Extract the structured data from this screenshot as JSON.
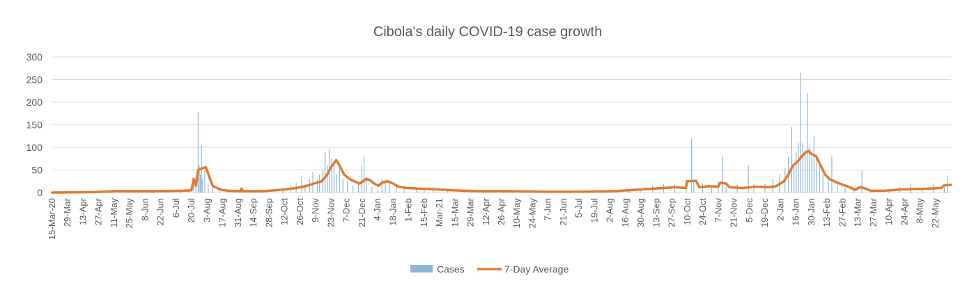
{
  "chart_data": {
    "type": "bar",
    "title": "Cibola's daily COVID-19 case growth",
    "xlabel": "",
    "ylabel": "",
    "ylim": [
      0,
      300
    ],
    "yticks": [
      0,
      50,
      100,
      150,
      200,
      250,
      300
    ],
    "grid": true,
    "legend_position": "bottom",
    "x_range": [
      "2020-03-15",
      "2022-05-31"
    ],
    "xtick_labels": [
      "15-Mar-20",
      "29-Mar",
      "13-Apr",
      "27-Apr",
      "11-May",
      "25-May",
      "8-Jun",
      "22-Jun",
      "6-Jul",
      "20-Jul",
      "3-Aug",
      "17-Aug",
      "31-Aug",
      "14-Sep",
      "28-Sep",
      "12-Oct",
      "26-Oct",
      "9-Nov",
      "23-Nov",
      "7-Dec",
      "21-Dec",
      "4-Jan",
      "18-Jan",
      "1-Feb",
      "15-Feb",
      "Mar-21",
      "15-Mar",
      "29-Mar",
      "12-Apr",
      "26-Apr",
      "10-May",
      "24-May",
      "7-Jun",
      "21-Jun",
      "5-Jul",
      "19-Jul",
      "2-Aug",
      "16-Aug",
      "30-Aug",
      "13-Sep",
      "27-Sep",
      "10-Oct",
      "24-Oct",
      "7-Nov",
      "21-Nov",
      "5-Dec",
      "19-Dec",
      "2-Jan",
      "16-Jan",
      "30-Jan",
      "13-Feb",
      "27-Feb",
      "13-Mar",
      "27-Mar",
      "10-Apr",
      "24-Apr",
      "8-May",
      "22-May"
    ],
    "series": [
      {
        "name": "Cases",
        "kind": "bar",
        "color": "#8fb6d9",
        "points": [
          [
            "2020-04-01",
            1
          ],
          [
            "2020-04-15",
            2
          ],
          [
            "2020-04-28",
            6
          ],
          [
            "2020-05-05",
            4
          ],
          [
            "2020-05-15",
            6
          ],
          [
            "2020-05-28",
            5
          ],
          [
            "2020-06-10",
            5
          ],
          [
            "2020-06-25",
            4
          ],
          [
            "2020-07-08",
            7
          ],
          [
            "2020-07-15",
            6
          ],
          [
            "2020-07-20",
            18
          ],
          [
            "2020-07-22",
            35
          ],
          [
            "2020-07-24",
            178
          ],
          [
            "2020-07-25",
            60
          ],
          [
            "2020-07-26",
            40
          ],
          [
            "2020-07-27",
            105
          ],
          [
            "2020-07-28",
            30
          ],
          [
            "2020-07-30",
            50
          ],
          [
            "2020-08-02",
            20
          ],
          [
            "2020-08-06",
            12
          ],
          [
            "2020-08-12",
            6
          ],
          [
            "2020-08-20",
            3
          ],
          [
            "2020-09-01",
            11
          ],
          [
            "2020-09-10",
            4
          ],
          [
            "2020-09-20",
            5
          ],
          [
            "2020-10-01",
            8
          ],
          [
            "2020-10-08",
            10
          ],
          [
            "2020-10-15",
            15
          ],
          [
            "2020-10-20",
            22
          ],
          [
            "2020-10-25",
            38
          ],
          [
            "2020-10-28",
            15
          ],
          [
            "2020-11-01",
            30
          ],
          [
            "2020-11-04",
            45
          ],
          [
            "2020-11-08",
            30
          ],
          [
            "2020-11-10",
            40
          ],
          [
            "2020-11-13",
            50
          ],
          [
            "2020-11-15",
            90
          ],
          [
            "2020-11-17",
            60
          ],
          [
            "2020-11-19",
            95
          ],
          [
            "2020-11-21",
            75
          ],
          [
            "2020-11-23",
            65
          ],
          [
            "2020-11-25",
            40
          ],
          [
            "2020-11-28",
            55
          ],
          [
            "2020-12-01",
            30
          ],
          [
            "2020-12-05",
            25
          ],
          [
            "2020-12-10",
            15
          ],
          [
            "2020-12-15",
            22
          ],
          [
            "2020-12-18",
            60
          ],
          [
            "2020-12-20",
            80
          ],
          [
            "2020-12-22",
            35
          ],
          [
            "2020-12-27",
            12
          ],
          [
            "2021-01-01",
            5
          ],
          [
            "2021-01-05",
            30
          ],
          [
            "2021-01-08",
            28
          ],
          [
            "2021-01-12",
            20
          ],
          [
            "2021-01-18",
            12
          ],
          [
            "2021-01-25",
            10
          ],
          [
            "2021-02-05",
            8
          ],
          [
            "2021-02-12",
            10
          ],
          [
            "2021-02-20",
            12
          ],
          [
            "2021-03-05",
            5
          ],
          [
            "2021-03-20",
            4
          ],
          [
            "2021-04-10",
            4
          ],
          [
            "2021-05-01",
            3
          ],
          [
            "2021-05-20",
            3
          ],
          [
            "2021-06-15",
            2
          ],
          [
            "2021-07-10",
            3
          ],
          [
            "2021-08-01",
            4
          ],
          [
            "2021-08-15",
            6
          ],
          [
            "2021-08-25",
            8
          ],
          [
            "2021-09-05",
            15
          ],
          [
            "2021-09-15",
            20
          ],
          [
            "2021-09-25",
            18
          ],
          [
            "2021-10-05",
            15
          ],
          [
            "2021-10-10",
            120
          ],
          [
            "2021-10-12",
            25
          ],
          [
            "2021-10-20",
            20
          ],
          [
            "2021-10-28",
            15
          ],
          [
            "2021-11-03",
            25
          ],
          [
            "2021-11-07",
            80
          ],
          [
            "2021-11-10",
            12
          ],
          [
            "2021-11-20",
            18
          ],
          [
            "2021-11-30",
            60
          ],
          [
            "2021-12-05",
            20
          ],
          [
            "2021-12-15",
            20
          ],
          [
            "2021-12-22",
            30
          ],
          [
            "2021-12-28",
            40
          ],
          [
            "2022-01-02",
            55
          ],
          [
            "2022-01-05",
            80
          ],
          [
            "2022-01-08",
            145
          ],
          [
            "2022-01-10",
            60
          ],
          [
            "2022-01-12",
            90
          ],
          [
            "2022-01-14",
            110
          ],
          [
            "2022-01-16",
            265
          ],
          [
            "2022-01-18",
            110
          ],
          [
            "2022-01-20",
            95
          ],
          [
            "2022-01-22",
            220
          ],
          [
            "2022-01-24",
            100
          ],
          [
            "2022-01-26",
            80
          ],
          [
            "2022-01-28",
            125
          ],
          [
            "2022-01-30",
            85
          ],
          [
            "2022-02-02",
            60
          ],
          [
            "2022-02-05",
            40
          ],
          [
            "2022-02-10",
            30
          ],
          [
            "2022-02-13",
            80
          ],
          [
            "2022-02-18",
            20
          ],
          [
            "2022-02-25",
            10
          ],
          [
            "2022-03-05",
            8
          ],
          [
            "2022-03-12",
            48
          ],
          [
            "2022-03-20",
            4
          ],
          [
            "2022-04-05",
            6
          ],
          [
            "2022-04-15",
            12
          ],
          [
            "2022-04-25",
            20
          ],
          [
            "2022-05-05",
            10
          ],
          [
            "2022-05-15",
            20
          ],
          [
            "2022-05-25",
            15
          ],
          [
            "2022-05-28",
            38
          ]
        ]
      },
      {
        "name": "7-Day Average",
        "kind": "line",
        "color": "#e07b2f",
        "points": [
          [
            "2020-03-15",
            0
          ],
          [
            "2020-04-20",
            1
          ],
          [
            "2020-05-10",
            3
          ],
          [
            "2020-06-15",
            3
          ],
          [
            "2020-07-10",
            4
          ],
          [
            "2020-07-18",
            5
          ],
          [
            "2020-07-20",
            30
          ],
          [
            "2020-07-22",
            15
          ],
          [
            "2020-07-24",
            50
          ],
          [
            "2020-07-28",
            54
          ],
          [
            "2020-07-31",
            56
          ],
          [
            "2020-08-03",
            35
          ],
          [
            "2020-08-06",
            15
          ],
          [
            "2020-08-10",
            10
          ],
          [
            "2020-08-14",
            6
          ],
          [
            "2020-08-20",
            4
          ],
          [
            "2020-08-31",
            3
          ],
          [
            "2020-09-01",
            9
          ],
          [
            "2020-09-02",
            3
          ],
          [
            "2020-09-20",
            3
          ],
          [
            "2020-10-01",
            5
          ],
          [
            "2020-10-10",
            7
          ],
          [
            "2020-10-20",
            10
          ],
          [
            "2020-10-28",
            14
          ],
          [
            "2020-11-05",
            20
          ],
          [
            "2020-11-12",
            25
          ],
          [
            "2020-11-17",
            40
          ],
          [
            "2020-11-20",
            55
          ],
          [
            "2020-11-23",
            65
          ],
          [
            "2020-11-25",
            72
          ],
          [
            "2020-11-28",
            60
          ],
          [
            "2020-12-02",
            40
          ],
          [
            "2020-12-07",
            30
          ],
          [
            "2020-12-12",
            24
          ],
          [
            "2020-12-16",
            20
          ],
          [
            "2020-12-19",
            25
          ],
          [
            "2020-12-22",
            30
          ],
          [
            "2020-12-25",
            28
          ],
          [
            "2020-12-29",
            20
          ],
          [
            "2021-01-02",
            15
          ],
          [
            "2021-01-05",
            22
          ],
          [
            "2021-01-10",
            25
          ],
          [
            "2021-01-15",
            20
          ],
          [
            "2021-01-20",
            13
          ],
          [
            "2021-01-28",
            10
          ],
          [
            "2021-02-05",
            9
          ],
          [
            "2021-02-15",
            8
          ],
          [
            "2021-02-25",
            7
          ],
          [
            "2021-03-10",
            5
          ],
          [
            "2021-04-01",
            3
          ],
          [
            "2021-05-01",
            3
          ],
          [
            "2021-06-01",
            2
          ],
          [
            "2021-07-01",
            2
          ],
          [
            "2021-08-01",
            3
          ],
          [
            "2021-08-20",
            6
          ],
          [
            "2021-09-01",
            8
          ],
          [
            "2021-09-15",
            10
          ],
          [
            "2021-09-25",
            12
          ],
          [
            "2021-10-05",
            10
          ],
          [
            "2021-10-06",
            25
          ],
          [
            "2021-10-14",
            26
          ],
          [
            "2021-10-17",
            12
          ],
          [
            "2021-10-25",
            14
          ],
          [
            "2021-11-03",
            13
          ],
          [
            "2021-11-05",
            22
          ],
          [
            "2021-11-10",
            20
          ],
          [
            "2021-11-13",
            12
          ],
          [
            "2021-11-25",
            10
          ],
          [
            "2021-12-05",
            13
          ],
          [
            "2021-12-18",
            12
          ],
          [
            "2021-12-25",
            14
          ],
          [
            "2022-01-01",
            25
          ],
          [
            "2022-01-05",
            40
          ],
          [
            "2022-01-09",
            60
          ],
          [
            "2022-01-13",
            68
          ],
          [
            "2022-01-17",
            80
          ],
          [
            "2022-01-20",
            88
          ],
          [
            "2022-01-23",
            92
          ],
          [
            "2022-01-26",
            85
          ],
          [
            "2022-01-30",
            80
          ],
          [
            "2022-02-03",
            60
          ],
          [
            "2022-02-07",
            40
          ],
          [
            "2022-02-11",
            30
          ],
          [
            "2022-02-15",
            25
          ],
          [
            "2022-02-22",
            18
          ],
          [
            "2022-03-01",
            12
          ],
          [
            "2022-03-06",
            6
          ],
          [
            "2022-03-10",
            12
          ],
          [
            "2022-03-14",
            10
          ],
          [
            "2022-03-20",
            4
          ],
          [
            "2022-04-01",
            4
          ],
          [
            "2022-04-15",
            7
          ],
          [
            "2022-05-01",
            8
          ],
          [
            "2022-05-15",
            9
          ],
          [
            "2022-05-22",
            10
          ],
          [
            "2022-05-25",
            16
          ],
          [
            "2022-05-31",
            17
          ]
        ]
      }
    ]
  }
}
